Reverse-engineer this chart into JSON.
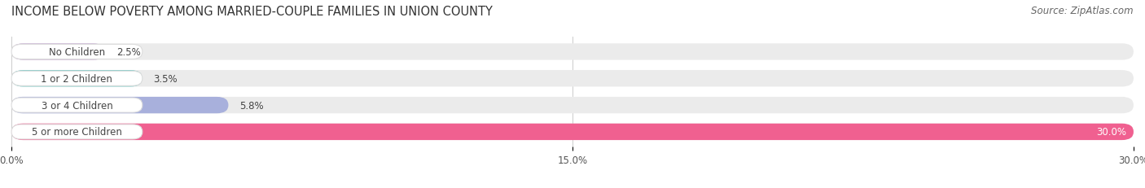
{
  "title": "INCOME BELOW POVERTY AMONG MARRIED-COUPLE FAMILIES IN UNION COUNTY",
  "source": "Source: ZipAtlas.com",
  "categories": [
    "No Children",
    "1 or 2 Children",
    "3 or 4 Children",
    "5 or more Children"
  ],
  "values": [
    2.5,
    3.5,
    5.8,
    30.0
  ],
  "bar_colors": [
    "#c9b3d4",
    "#72c8c4",
    "#a8b0dc",
    "#f06090"
  ],
  "bar_bg_color": "#ebebeb",
  "xlim": [
    0,
    30.0
  ],
  "xticks": [
    0.0,
    15.0,
    30.0
  ],
  "xtick_labels": [
    "0.0%",
    "15.0%",
    "30.0%"
  ],
  "title_fontsize": 10.5,
  "source_fontsize": 8.5,
  "label_fontsize": 8.5,
  "value_fontsize": 8.5,
  "tick_fontsize": 8.5,
  "bar_height": 0.62,
  "background_color": "#ffffff"
}
